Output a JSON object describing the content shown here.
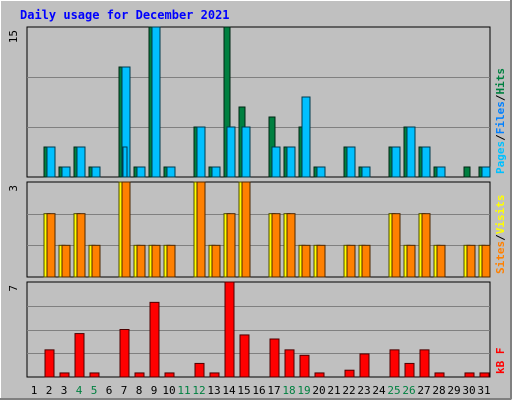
{
  "chart_data": [
    {
      "type": "bar",
      "title": "Daily usage for December 2021",
      "ylabel_parts": [
        "Pages",
        "/",
        "Files",
        "/",
        "Hits"
      ],
      "y_max_label": "15",
      "ylim": [
        0,
        15
      ],
      "categories": [
        "1",
        "2",
        "3",
        "4",
        "5",
        "6",
        "7",
        "8",
        "9",
        "10",
        "11",
        "12",
        "13",
        "14",
        "15",
        "16",
        "17",
        "18",
        "19",
        "20",
        "21",
        "22",
        "23",
        "24",
        "25",
        "26",
        "27",
        "28",
        "29",
        "30",
        "31"
      ],
      "series": [
        {
          "name": "Hits",
          "color": "#008040",
          "values": [
            0,
            3,
            1,
            3,
            1,
            0,
            11,
            1,
            15,
            1,
            0,
            5,
            1,
            15,
            7,
            0,
            6,
            3,
            5,
            1,
            0,
            3,
            1,
            0,
            3,
            5,
            3,
            1,
            0,
            1,
            1
          ]
        },
        {
          "name": "Files",
          "color": "#00C0FF",
          "values": [
            0,
            3,
            1,
            3,
            1,
            0,
            11,
            1,
            15,
            1,
            0,
            5,
            1,
            5,
            5,
            0,
            3,
            3,
            8,
            1,
            0,
            3,
            1,
            0,
            3,
            5,
            3,
            1,
            0,
            0,
            1
          ]
        },
        {
          "name": "Pages",
          "color": "#00C0FF",
          "values": [
            0,
            0,
            0,
            0,
            0,
            0,
            3,
            0,
            0,
            0,
            0,
            0,
            0,
            0,
            0,
            0,
            0,
            0,
            0,
            0,
            0,
            0,
            0,
            0,
            0,
            0,
            0,
            0,
            0,
            0,
            0
          ]
        }
      ]
    },
    {
      "type": "bar",
      "ylabel_parts": [
        "Sites",
        "/",
        "Visits"
      ],
      "y_max_label": "3",
      "ylim": [
        0,
        3
      ],
      "categories": [
        "1",
        "2",
        "3",
        "4",
        "5",
        "6",
        "7",
        "8",
        "9",
        "10",
        "11",
        "12",
        "13",
        "14",
        "15",
        "16",
        "17",
        "18",
        "19",
        "20",
        "21",
        "22",
        "23",
        "24",
        "25",
        "26",
        "27",
        "28",
        "29",
        "30",
        "31"
      ],
      "series": [
        {
          "name": "Visits",
          "color": "#FFFF00",
          "values": [
            0,
            2,
            1,
            2,
            1,
            0,
            3,
            1,
            1,
            1,
            0,
            3,
            1,
            2,
            3,
            0,
            2,
            2,
            1,
            1,
            0,
            1,
            1,
            0,
            2,
            1,
            2,
            1,
            0,
            1,
            1
          ]
        },
        {
          "name": "Sites",
          "color": "#FF8000",
          "values": [
            0,
            2,
            1,
            2,
            1,
            0,
            3,
            1,
            1,
            1,
            0,
            3,
            1,
            2,
            3,
            0,
            2,
            2,
            1,
            1,
            0,
            1,
            1,
            0,
            2,
            1,
            2,
            1,
            0,
            1,
            1
          ]
        }
      ]
    },
    {
      "type": "bar",
      "ylabel_parts": [
        "kB F"
      ],
      "y_max_label": "7",
      "ylim": [
        0,
        7
      ],
      "categories": [
        "1",
        "2",
        "3",
        "4",
        "5",
        "6",
        "7",
        "8",
        "9",
        "10",
        "11",
        "12",
        "13",
        "14",
        "15",
        "16",
        "17",
        "18",
        "19",
        "20",
        "21",
        "22",
        "23",
        "24",
        "25",
        "26",
        "27",
        "28",
        "29",
        "30",
        "31"
      ],
      "series": [
        {
          "name": "kB F",
          "color": "#FF0000",
          "values": [
            0,
            2,
            0.3,
            3.2,
            0.3,
            0,
            3.5,
            0.3,
            5.5,
            0.3,
            0,
            1,
            0.3,
            7,
            3.1,
            0,
            2.8,
            2,
            1.6,
            0.3,
            0,
            0.5,
            1.7,
            0,
            2,
            1,
            2,
            0.3,
            0,
            0.3,
            0.3
          ]
        }
      ]
    }
  ],
  "weekend_days": [
    4,
    5,
    11,
    12,
    18,
    19,
    25,
    26
  ],
  "colors": {
    "background": "#C0C0C0",
    "title": "#0000FF",
    "axis_text": "#000000",
    "weekend_text": "#008040",
    "gridline": "#808080"
  }
}
